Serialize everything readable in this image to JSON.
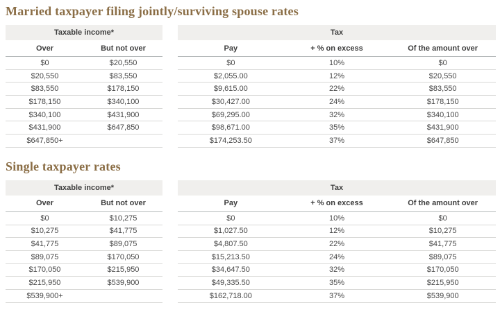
{
  "colors": {
    "title": "#8a6d45",
    "header_band_bg": "#f0efed",
    "header_text": "#3d3d3d",
    "data_text": "#474747",
    "subheader_border": "#b5b9ba",
    "row_border": "#d8d8d6",
    "page_bg": "#ffffff"
  },
  "sections": [
    {
      "title": "Married taxpayer filing jointly/surviving spouse rates",
      "income_group_header": "Taxable income*",
      "tax_group_header": "Tax",
      "income_columns": {
        "over": "Over",
        "but_not_over": "But not over"
      },
      "tax_columns": {
        "pay": "Pay",
        "pct": "+ % on excess",
        "amount_over": "Of the amount over"
      },
      "rows": [
        {
          "over": "$0",
          "but_not_over": "$20,550",
          "pay": "$0",
          "pct": "10%",
          "amount_over": "$0"
        },
        {
          "over": "$20,550",
          "but_not_over": "$83,550",
          "pay": "$2,055.00",
          "pct": "12%",
          "amount_over": "$20,550"
        },
        {
          "over": "$83,550",
          "but_not_over": "$178,150",
          "pay": "$9,615.00",
          "pct": "22%",
          "amount_over": "$83,550"
        },
        {
          "over": "$178,150",
          "but_not_over": "$340,100",
          "pay": "$30,427.00",
          "pct": "24%",
          "amount_over": "$178,150"
        },
        {
          "over": "$340,100",
          "but_not_over": "$431,900",
          "pay": "$69,295.00",
          "pct": "32%",
          "amount_over": "$340,100"
        },
        {
          "over": "$431,900",
          "but_not_over": "$647,850",
          "pay": "$98,671.00",
          "pct": "35%",
          "amount_over": "$431,900"
        },
        {
          "over": "$647,850+",
          "but_not_over": "",
          "pay": "$174,253.50",
          "pct": "37%",
          "amount_over": "$647,850"
        }
      ]
    },
    {
      "title": "Single taxpayer rates",
      "income_group_header": "Taxable income*",
      "tax_group_header": "Tax",
      "income_columns": {
        "over": "Over",
        "but_not_over": "But not over"
      },
      "tax_columns": {
        "pay": "Pay",
        "pct": "+ % on excess",
        "amount_over": "Of the amount over"
      },
      "rows": [
        {
          "over": "$0",
          "but_not_over": "$10,275",
          "pay": "$0",
          "pct": "10%",
          "amount_over": "$0"
        },
        {
          "over": "$10,275",
          "but_not_over": "$41,775",
          "pay": "$1,027.50",
          "pct": "12%",
          "amount_over": "$10,275"
        },
        {
          "over": "$41,775",
          "but_not_over": "$89,075",
          "pay": "$4,807.50",
          "pct": "22%",
          "amount_over": "$41,775"
        },
        {
          "over": "$89,075",
          "but_not_over": "$170,050",
          "pay": "$15,213.50",
          "pct": "24%",
          "amount_over": "$89,075"
        },
        {
          "over": "$170,050",
          "but_not_over": "$215,950",
          "pay": "$34,647.50",
          "pct": "32%",
          "amount_over": "$170,050"
        },
        {
          "over": "$215,950",
          "but_not_over": "$539,900",
          "pay": "$49,335.50",
          "pct": "35%",
          "amount_over": "$215,950"
        },
        {
          "over": "$539,900+",
          "but_not_over": "",
          "pay": "$162,718.00",
          "pct": "37%",
          "amount_over": "$539,900"
        }
      ]
    }
  ]
}
